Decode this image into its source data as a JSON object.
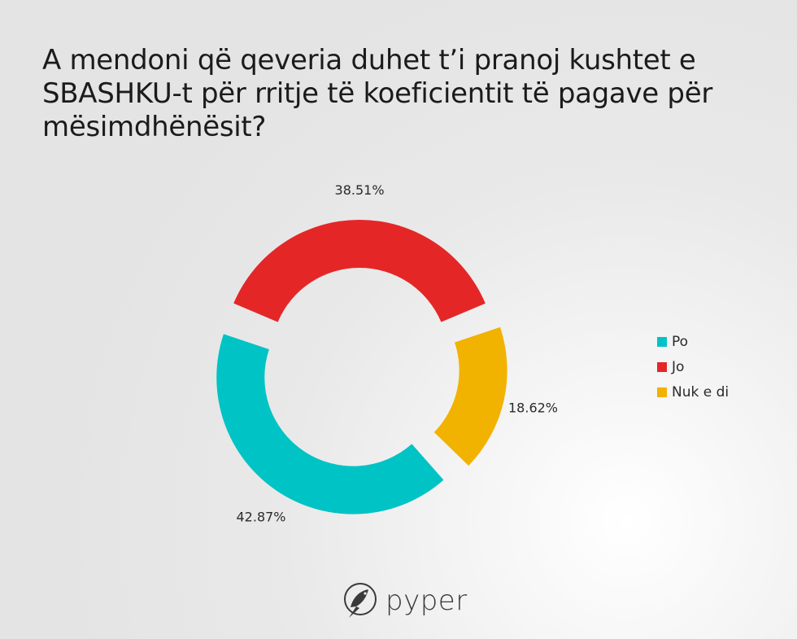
{
  "chart_data": {
    "type": "pie",
    "title": "A mendoni që qeveria duhet t’i pranoj kushtet e SBASHKU-t për rritje të koeficientit të pagave për mësimdhënësit?",
    "categories": [
      "Po",
      "Jo",
      "Nuk e di"
    ],
    "values": [
      42.87,
      38.51,
      18.62
    ],
    "data_labels": [
      "42.87%",
      "38.51%",
      "18.62%"
    ],
    "colors": [
      "#00C3C5",
      "#E42726",
      "#F2B200"
    ],
    "legend_position": "right",
    "donut": true,
    "exploded": true
  },
  "branding": {
    "logo_text": "pyper",
    "logo_icon": "bird-icon"
  }
}
